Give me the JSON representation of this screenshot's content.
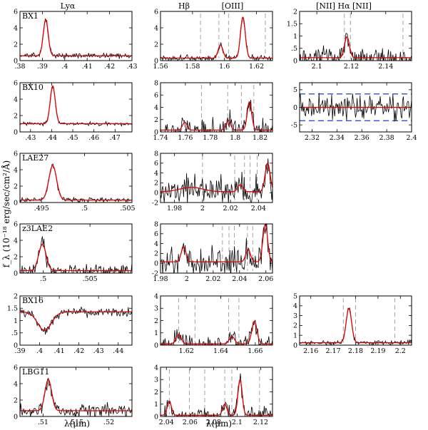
{
  "figure": {
    "column_headers": [
      "Lyα",
      "Hβ",
      "[OIII]",
      "[NII] Hα [NII]"
    ],
    "ylabel": "f_λ (10⁻¹⁸ erg/sec/cm²/Å)",
    "xlabel": "λ(μm)",
    "colors": {
      "data": "#000000",
      "fit": "#e00000",
      "marker": "#9a9a9a",
      "error": "#1a3fd6"
    }
  },
  "chart_data": [
    {
      "type": "line",
      "row": 0,
      "col": 0,
      "object": "BX1",
      "line": "Lyα",
      "xlim": [
        0.38,
        0.43
      ],
      "ylim": [
        0,
        6
      ],
      "xticks": [
        0.38,
        0.39,
        0.4,
        0.41,
        0.42,
        0.43
      ],
      "yticks": [
        0,
        2,
        4,
        6
      ],
      "continuum": 0.6,
      "peaks": [
        {
          "x": 0.3915,
          "amp": 4.4,
          "sigma": 0.0011
        }
      ],
      "noise": 0.25,
      "markers": []
    },
    {
      "type": "line",
      "row": 0,
      "col": 1,
      "object": "",
      "line": "Hβ / [OIII]",
      "xlim": [
        1.56,
        1.63
      ],
      "ylim": [
        0,
        6
      ],
      "xticks": [
        1.56,
        1.58,
        1.6,
        1.62
      ],
      "yticks": [
        0,
        2,
        4,
        6
      ],
      "continuum": 0.3,
      "peaks": [
        {
          "x": 1.5975,
          "amp": 1.6,
          "sigma": 0.0015
        },
        {
          "x": 1.6115,
          "amp": 5.0,
          "sigma": 0.0015
        }
      ],
      "noise": 0.35,
      "markers": [
        1.585,
        1.5965,
        1.6025,
        1.6255
      ]
    },
    {
      "type": "line",
      "row": 0,
      "col": 2,
      "object": "",
      "line": "[NII] Hα [NII]",
      "xlim": [
        2.09,
        2.155
      ],
      "ylim": [
        0,
        2
      ],
      "xticks": [
        2.1,
        2.12,
        2.14
      ],
      "yticks": [
        0,
        0.5,
        1,
        1.5,
        2
      ],
      "continuum": 0.12,
      "peaks": [
        {
          "x": 2.1175,
          "amp": 0.85,
          "sigma": 0.0014
        }
      ],
      "noise": 0.35,
      "markers": [
        2.116,
        2.1195,
        2.15
      ]
    },
    {
      "type": "line",
      "row": 1,
      "col": 0,
      "object": "BX10",
      "line": "Lyα",
      "xlim": [
        0.425,
        0.478
      ],
      "ylim": [
        0,
        6
      ],
      "xticks": [
        0.43,
        0.44,
        0.45,
        0.46,
        0.47
      ],
      "yticks": [
        0,
        2,
        4,
        6
      ],
      "continuum": 1.0,
      "peaks": [
        {
          "x": 0.4405,
          "amp": 4.6,
          "sigma": 0.0012
        }
      ],
      "noise": 0.18,
      "markers": []
    },
    {
      "type": "line",
      "row": 1,
      "col": 1,
      "object": "",
      "line": "Hβ / [OIII]",
      "xlim": [
        1.74,
        1.83
      ],
      "ylim": [
        0,
        8
      ],
      "xticks": [
        1.74,
        1.76,
        1.78,
        1.8,
        1.82
      ],
      "yticks": [
        0,
        2,
        4,
        6,
        8
      ],
      "continuum": 0.3,
      "peaks": [
        {
          "x": 1.7595,
          "amp": 1.3,
          "sigma": 0.0018
        },
        {
          "x": 1.7945,
          "amp": 1.6,
          "sigma": 0.0018
        },
        {
          "x": 1.8115,
          "amp": 4.6,
          "sigma": 0.0018
        }
      ],
      "noise": 1.6,
      "markers": [
        1.773,
        1.794,
        1.805,
        1.815
      ]
    },
    {
      "type": "line",
      "row": 1,
      "col": 2,
      "object": "",
      "line": "[NII] Hα [NII]",
      "xlim": [
        2.31,
        2.4
      ],
      "ylim": [
        -7,
        7
      ],
      "xticks": [
        2.32,
        2.34,
        2.36,
        2.38,
        2.4
      ],
      "yticks": [
        -5,
        0,
        5
      ],
      "continuum": 0.0,
      "peaks": [],
      "noise": 3.0,
      "markers": [],
      "error_band": 3.8
    },
    {
      "type": "line",
      "row": 2,
      "col": 0,
      "object": "LAE27",
      "line": "Lyα",
      "xlim": [
        0.4925,
        0.5055
      ],
      "ylim": [
        0,
        6
      ],
      "xticks": [
        0.495,
        0.5,
        0.505
      ],
      "yticks": [
        0,
        2,
        4,
        6
      ],
      "continuum": 0.3,
      "peaks": [
        {
          "x": 0.4963,
          "amp": 4.2,
          "sigma": 0.00045
        }
      ],
      "noise": 0.25,
      "markers": []
    },
    {
      "type": "line",
      "row": 2,
      "col": 1,
      "object": "",
      "line": "Hβ / [OIII]",
      "xlim": [
        1.97,
        2.05
      ],
      "ylim": [
        -2,
        8
      ],
      "xticks": [
        1.98,
        2.0,
        2.02,
        2.04
      ],
      "yticks": [
        -2,
        0,
        2,
        4,
        6,
        8
      ],
      "continuum": 0.2,
      "peaks": [
        {
          "x": 1.992,
          "amp": 0.9,
          "sigma": 0.008
        },
        {
          "x": 2.027,
          "amp": 1.4,
          "sigma": 0.0018
        },
        {
          "x": 2.0465,
          "amp": 5.8,
          "sigma": 0.0018
        }
      ],
      "noise": 2.8,
      "markers": [
        2.0,
        2.023,
        2.03,
        2.034,
        2.039
      ]
    },
    {
      "type": "line",
      "row": 3,
      "col": 0,
      "object": "z3LAE2",
      "line": "Lyα",
      "xlim": [
        0.4975,
        0.5095
      ],
      "ylim": [
        0,
        6
      ],
      "xticks": [
        0.5,
        0.505
      ],
      "yticks": [
        0,
        2,
        4,
        6
      ],
      "continuum": 0.3,
      "peaks": [
        {
          "x": 0.4999,
          "amp": 3.2,
          "sigma": 0.0004
        }
      ],
      "noise": 0.8,
      "markers": []
    },
    {
      "type": "line",
      "row": 3,
      "col": 1,
      "object": "",
      "line": "Hβ / [OIII]",
      "xlim": [
        1.98,
        2.065
      ],
      "ylim": [
        -2,
        8
      ],
      "xticks": [
        1.98,
        2.0,
        2.02,
        2.04,
        2.06
      ],
      "yticks": [
        -2,
        0,
        2,
        4,
        6,
        8
      ],
      "continuum": 0.3,
      "peaks": [
        {
          "x": 1.9975,
          "amp": 3.0,
          "sigma": 0.0018
        },
        {
          "x": 2.0465,
          "amp": 2.5,
          "sigma": 0.0018
        },
        {
          "x": 2.0595,
          "amp": 7.6,
          "sigma": 0.0018
        }
      ],
      "noise": 2.2,
      "markers": [
        2.027,
        2.032,
        2.036,
        2.046,
        2.05
      ]
    },
    {
      "type": "line",
      "row": 4,
      "col": 0,
      "object": "BX16",
      "line": "Lyα",
      "xlim": [
        0.39,
        0.447
      ],
      "ylim": [
        0,
        2
      ],
      "xticks": [
        0.39,
        0.4,
        0.41,
        0.42,
        0.43,
        0.44
      ],
      "yticks": [
        0,
        0.5,
        1,
        1.5,
        2
      ],
      "continuum": 1.35,
      "peaks": [
        {
          "x": 0.4025,
          "amp": -0.75,
          "sigma": 0.0035
        }
      ],
      "noise": 0.17,
      "markers": []
    },
    {
      "type": "line",
      "row": 4,
      "col": 1,
      "object": "",
      "line": "Hβ / [OIII]",
      "xlim": [
        1.605,
        1.67
      ],
      "ylim": [
        0,
        4
      ],
      "xticks": [
        1.62,
        1.64,
        1.66
      ],
      "yticks": [
        0,
        1,
        2,
        3,
        4
      ],
      "continuum": 0.1,
      "peaks": [
        {
          "x": 1.6155,
          "amp": 0.75,
          "sigma": 0.0015
        },
        {
          "x": 1.6465,
          "amp": 0.6,
          "sigma": 0.0015
        },
        {
          "x": 1.6595,
          "amp": 1.85,
          "sigma": 0.0015
        }
      ],
      "noise": 0.55,
      "markers": [
        1.6155,
        1.625,
        1.6445,
        1.6505
      ]
    },
    {
      "type": "line",
      "row": 4,
      "col": 2,
      "object": "",
      "line": "[NII] Hα [NII]",
      "xlim": [
        2.155,
        2.205
      ],
      "ylim": [
        0,
        5
      ],
      "xticks": [
        2.16,
        2.17,
        2.18,
        2.19,
        2.2
      ],
      "yticks": [
        0,
        1,
        2,
        3,
        4,
        5
      ],
      "continuum": 0.25,
      "peaks": [
        {
          "x": 2.177,
          "amp": 3.5,
          "sigma": 0.0012
        }
      ],
      "noise": 0.2,
      "markers": [
        2.1745,
        2.18,
        2.1975
      ]
    },
    {
      "type": "line",
      "row": 5,
      "col": 0,
      "object": "LBG11",
      "line": "Lyα",
      "xlim": [
        0.5065,
        0.5235
      ],
      "ylim": [
        0,
        6
      ],
      "xticks": [
        0.51,
        0.515,
        0.52
      ],
      "yticks": [
        0,
        2,
        4,
        6
      ],
      "continuum": 0.7,
      "peaks": [
        {
          "x": 0.5108,
          "amp": 3.8,
          "sigma": 0.0005
        }
      ],
      "noise": 0.7,
      "markers": []
    },
    {
      "type": "line",
      "row": 5,
      "col": 1,
      "object": "",
      "line": "Hβ / [OIII]",
      "xlim": [
        2.035,
        2.13
      ],
      "ylim": [
        0,
        4
      ],
      "xticks": [
        2.04,
        2.06,
        2.08,
        2.1,
        2.12
      ],
      "yticks": [
        0,
        1,
        2,
        3,
        4
      ],
      "continuum": 0.1,
      "peaks": [
        {
          "x": 2.0425,
          "amp": 1.1,
          "sigma": 0.0018
        },
        {
          "x": 2.0895,
          "amp": 0.9,
          "sigma": 0.0018
        },
        {
          "x": 2.1025,
          "amp": 2.9,
          "sigma": 0.0018
        }
      ],
      "noise": 0.55,
      "markers": [
        2.0425,
        2.0595,
        2.0725,
        2.0895,
        2.0955,
        2.119
      ]
    }
  ]
}
